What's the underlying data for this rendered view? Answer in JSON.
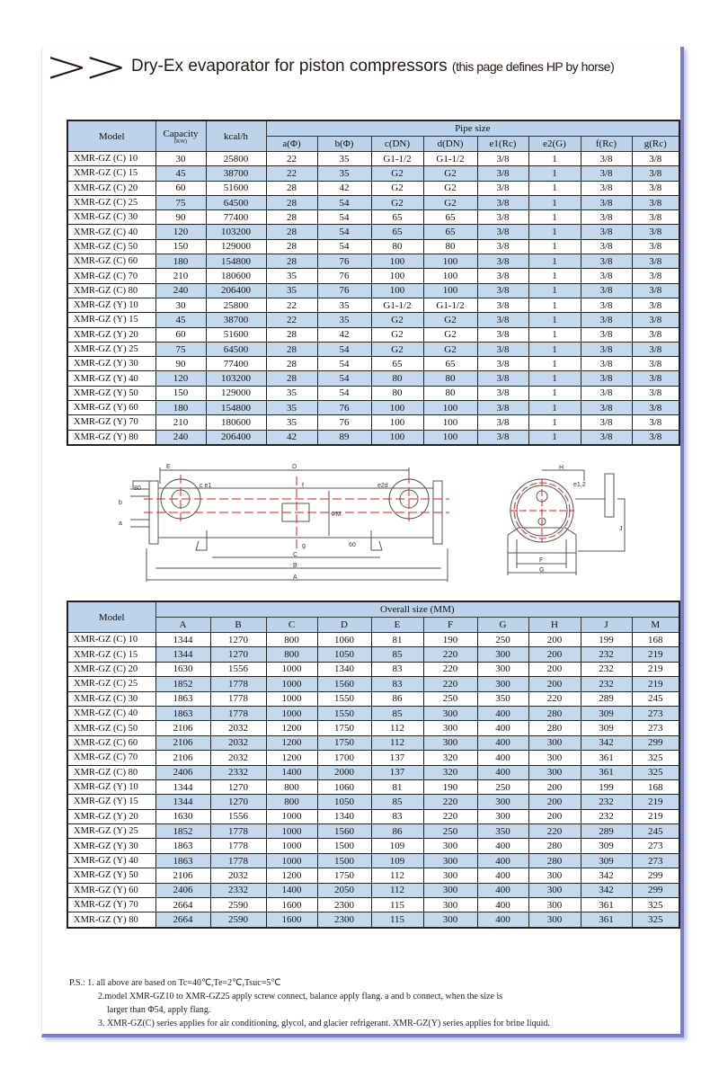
{
  "header": {
    "chevrons": ">>",
    "title": "Dry-Ex evaporator for piston compressors",
    "subtitle": "(this page defines HP by horse)"
  },
  "pipe_table": {
    "model_header": "Model",
    "capacity_header": "Capacity",
    "capacity_unit": "(KW)",
    "kcal_header": "kcal/h",
    "group_header": "Pipe size",
    "columns": [
      "a(Φ)",
      "b(Φ)",
      "c(DN)",
      "d(DN)",
      "e1(Rc)",
      "e2(G)",
      "f(Rc)",
      "g(Rc)"
    ],
    "rows": [
      [
        "XMR-GZ (C) 10",
        "30",
        "25800",
        "22",
        "35",
        "G1-1/2",
        "G1-1/2",
        "3/8",
        "1",
        "3/8",
        "3/8"
      ],
      [
        "XMR-GZ (C) 15",
        "45",
        "38700",
        "22",
        "35",
        "G2",
        "G2",
        "3/8",
        "1",
        "3/8",
        "3/8"
      ],
      [
        "XMR-GZ (C) 20",
        "60",
        "51600",
        "28",
        "42",
        "G2",
        "G2",
        "3/8",
        "1",
        "3/8",
        "3/8"
      ],
      [
        "XMR-GZ (C) 25",
        "75",
        "64500",
        "28",
        "54",
        "G2",
        "G2",
        "3/8",
        "1",
        "3/8",
        "3/8"
      ],
      [
        "XMR-GZ (C) 30",
        "90",
        "77400",
        "28",
        "54",
        "65",
        "65",
        "3/8",
        "1",
        "3/8",
        "3/8"
      ],
      [
        "XMR-GZ (C) 40",
        "120",
        "103200",
        "28",
        "54",
        "65",
        "65",
        "3/8",
        "1",
        "3/8",
        "3/8"
      ],
      [
        "XMR-GZ (C) 50",
        "150",
        "129000",
        "28",
        "54",
        "80",
        "80",
        "3/8",
        "1",
        "3/8",
        "3/8"
      ],
      [
        "XMR-GZ (C) 60",
        "180",
        "154800",
        "28",
        "76",
        "100",
        "100",
        "3/8",
        "1",
        "3/8",
        "3/8"
      ],
      [
        "XMR-GZ (C) 70",
        "210",
        "180600",
        "35",
        "76",
        "100",
        "100",
        "3/8",
        "1",
        "3/8",
        "3/8"
      ],
      [
        "XMR-GZ (C) 80",
        "240",
        "206400",
        "35",
        "76",
        "100",
        "100",
        "3/8",
        "1",
        "3/8",
        "3/8"
      ],
      [
        "XMR-GZ (Y) 10",
        "30",
        "25800",
        "22",
        "35",
        "G1-1/2",
        "G1-1/2",
        "3/8",
        "1",
        "3/8",
        "3/8"
      ],
      [
        "XMR-GZ (Y) 15",
        "45",
        "38700",
        "22",
        "35",
        "G2",
        "G2",
        "3/8",
        "1",
        "3/8",
        "3/8"
      ],
      [
        "XMR-GZ (Y) 20",
        "60",
        "51600",
        "28",
        "42",
        "G2",
        "G2",
        "3/8",
        "1",
        "3/8",
        "3/8"
      ],
      [
        "XMR-GZ (Y) 25",
        "75",
        "64500",
        "28",
        "54",
        "G2",
        "G2",
        "3/8",
        "1",
        "3/8",
        "3/8"
      ],
      [
        "XMR-GZ (Y) 30",
        "90",
        "77400",
        "28",
        "54",
        "65",
        "65",
        "3/8",
        "1",
        "3/8",
        "3/8"
      ],
      [
        "XMR-GZ (Y) 40",
        "120",
        "103200",
        "28",
        "54",
        "80",
        "80",
        "3/8",
        "1",
        "3/8",
        "3/8"
      ],
      [
        "XMR-GZ (Y) 50",
        "150",
        "129000",
        "35",
        "54",
        "80",
        "80",
        "3/8",
        "1",
        "3/8",
        "3/8"
      ],
      [
        "XMR-GZ (Y) 60",
        "180",
        "154800",
        "35",
        "76",
        "100",
        "100",
        "3/8",
        "1",
        "3/8",
        "3/8"
      ],
      [
        "XMR-GZ (Y) 70",
        "210",
        "180600",
        "35",
        "76",
        "100",
        "100",
        "3/8",
        "1",
        "3/8",
        "3/8"
      ],
      [
        "XMR-GZ (Y) 80",
        "240",
        "206400",
        "42",
        "89",
        "100",
        "100",
        "3/8",
        "1",
        "3/8",
        "3/8"
      ]
    ]
  },
  "diagram": {
    "side_labels": {
      "E": "E",
      "D": "D",
      "c_e1": "c e1",
      "e2d": "e2d",
      "f": "f",
      "g": "g",
      "b": "b",
      "a": "a",
      "dim80": "80",
      "phiM": "ΦM",
      "dim60": "60",
      "C": "C",
      "B": "B",
      "A": "A"
    },
    "end_labels": {
      "H": "H",
      "e12": "e1,2",
      "J": "J",
      "F": "F",
      "G": "G"
    },
    "line_color": "#555555",
    "center_color": "#e0201a"
  },
  "size_table": {
    "model_header": "Model",
    "group_header": "Overall size (MM)",
    "columns": [
      "A",
      "B",
      "C",
      "D",
      "E",
      "F",
      "G",
      "H",
      "J",
      "M"
    ],
    "rows": [
      [
        "XMR-GZ (C) 10",
        "1344",
        "1270",
        "800",
        "1060",
        "81",
        "190",
        "250",
        "200",
        "199",
        "168"
      ],
      [
        "XMR-GZ (C) 15",
        "1344",
        "1270",
        "800",
        "1050",
        "85",
        "220",
        "300",
        "200",
        "232",
        "219"
      ],
      [
        "XMR-GZ (C) 20",
        "1630",
        "1556",
        "1000",
        "1340",
        "83",
        "220",
        "300",
        "200",
        "232",
        "219"
      ],
      [
        "XMR-GZ (C) 25",
        "1852",
        "1778",
        "1000",
        "1560",
        "83",
        "220",
        "300",
        "200",
        "232",
        "219"
      ],
      [
        "XMR-GZ (C) 30",
        "1863",
        "1778",
        "1000",
        "1550",
        "86",
        "250",
        "350",
        "220",
        "289",
        "245"
      ],
      [
        "XMR-GZ (C) 40",
        "1863",
        "1778",
        "1000",
        "1550",
        "85",
        "300",
        "400",
        "280",
        "309",
        "273"
      ],
      [
        "XMR-GZ (C) 50",
        "2106",
        "2032",
        "1200",
        "1750",
        "112",
        "300",
        "400",
        "280",
        "309",
        "273"
      ],
      [
        "XMR-GZ (C) 60",
        "2106",
        "2032",
        "1200",
        "1750",
        "112",
        "300",
        "400",
        "300",
        "342",
        "299"
      ],
      [
        "XMR-GZ (C) 70",
        "2106",
        "2032",
        "1200",
        "1700",
        "137",
        "320",
        "400",
        "300",
        "361",
        "325"
      ],
      [
        "XMR-GZ (C) 80",
        "2406",
        "2332",
        "1400",
        "2000",
        "137",
        "320",
        "400",
        "300",
        "361",
        "325"
      ],
      [
        "XMR-GZ (Y) 10",
        "1344",
        "1270",
        "800",
        "1060",
        "81",
        "190",
        "250",
        "200",
        "199",
        "168"
      ],
      [
        "XMR-GZ (Y) 15",
        "1344",
        "1270",
        "800",
        "1050",
        "85",
        "220",
        "300",
        "200",
        "232",
        "219"
      ],
      [
        "XMR-GZ (Y) 20",
        "1630",
        "1556",
        "1000",
        "1340",
        "83",
        "220",
        "300",
        "200",
        "232",
        "219"
      ],
      [
        "XMR-GZ (Y) 25",
        "1852",
        "1778",
        "1000",
        "1560",
        "86",
        "250",
        "350",
        "220",
        "289",
        "245"
      ],
      [
        "XMR-GZ (Y) 30",
        "1863",
        "1778",
        "1000",
        "1500",
        "109",
        "300",
        "400",
        "280",
        "309",
        "273"
      ],
      [
        "XMR-GZ (Y) 40",
        "1863",
        "1778",
        "1000",
        "1500",
        "109",
        "300",
        "400",
        "280",
        "309",
        "273"
      ],
      [
        "XMR-GZ (Y) 50",
        "2106",
        "2032",
        "1200",
        "1750",
        "112",
        "300",
        "400",
        "300",
        "342",
        "299"
      ],
      [
        "XMR-GZ (Y) 60",
        "2406",
        "2332",
        "1400",
        "2050",
        "112",
        "300",
        "400",
        "300",
        "342",
        "299"
      ],
      [
        "XMR-GZ (Y) 70",
        "2664",
        "2590",
        "1600",
        "2300",
        "115",
        "300",
        "400",
        "300",
        "361",
        "325"
      ],
      [
        "XMR-GZ (Y) 80",
        "2664",
        "2590",
        "1600",
        "2300",
        "115",
        "300",
        "400",
        "300",
        "361",
        "325"
      ]
    ]
  },
  "notes": {
    "prefix": "P.S.:",
    "n1": "1. all above are based on Tc=40℃,Te=2℃,Tsuc=5℃",
    "n2a": "2.model XMR-GZ10 to XMR-GZ25 apply screw connect, balance apply flang. a and b connect, when the size is",
    "n2b": "larger than Φ54, apply flang.",
    "n3": "3. XMR-GZ(C) series applies for air conditioning, glycol, and glacier refrigerant. XMR-GZ(Y) series applies for brine liquid."
  }
}
